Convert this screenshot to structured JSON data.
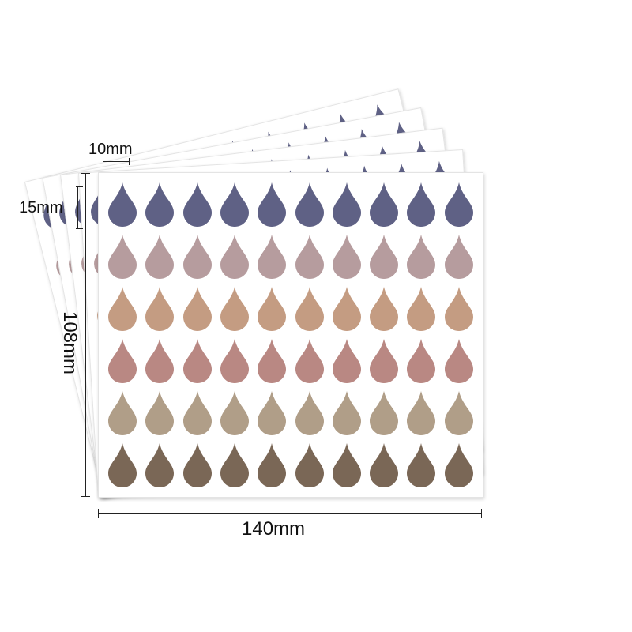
{
  "dimensions": {
    "drop_width": "10mm",
    "drop_height": "15mm",
    "sheet_height": "108mm",
    "sheet_width": "140mm"
  },
  "sheet": {
    "layers": 5,
    "rows": 6,
    "columns": 10
  },
  "row_colors": [
    "#5f6185",
    "#b69c9e",
    "#c49c82",
    "#b98883",
    "#b09e88",
    "#7a6756"
  ],
  "icons": {
    "sticker": "teardrop-icon"
  }
}
